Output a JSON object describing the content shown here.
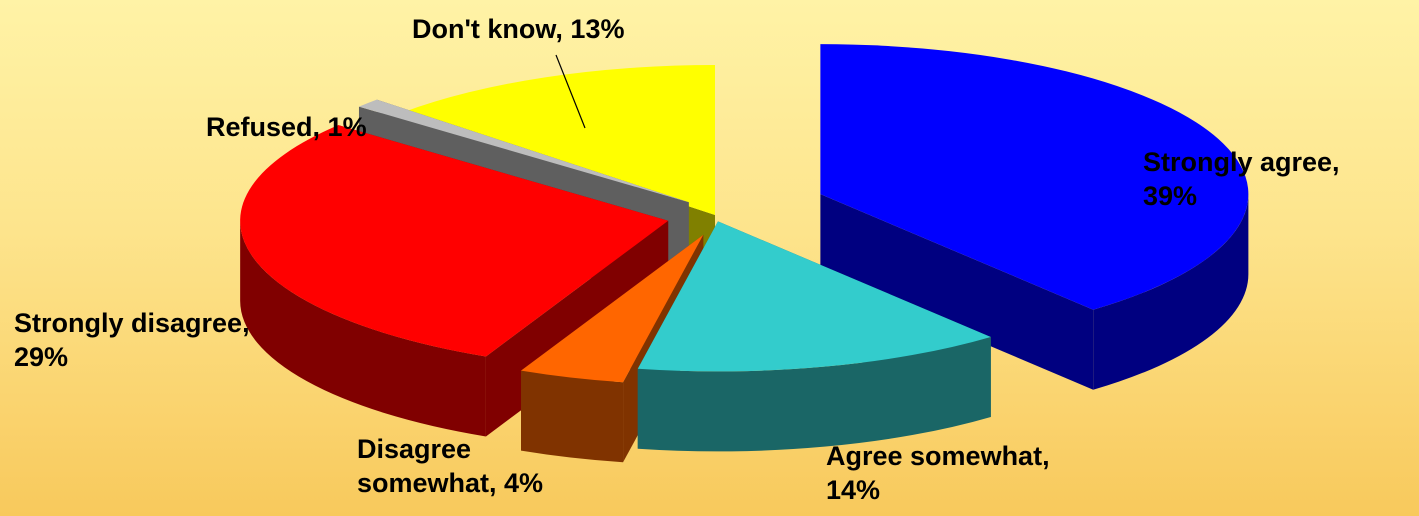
{
  "chart_data": {
    "type": "pie",
    "exploded": true,
    "three_d": true,
    "title": "",
    "slices": [
      {
        "label": "Strongly agree",
        "value": 39,
        "color": "#0000ff"
      },
      {
        "label": "Agree somewhat",
        "value": 14,
        "color": "#33cccc"
      },
      {
        "label": "Disagree somewhat",
        "value": 4,
        "color": "#ff6600"
      },
      {
        "label": "Strongly disagree",
        "value": 29,
        "color": "#ff0000"
      },
      {
        "label": "Refused",
        "value": 1,
        "color": "#bdbdbd"
      },
      {
        "label": "Don't know",
        "value": 13,
        "color": "#ffff00"
      }
    ]
  },
  "labels": {
    "strongly_agree": {
      "name": "Strongly agree,",
      "pct": "39%"
    },
    "agree_somewhat": {
      "name": "Agree somewhat,",
      "pct": "14%"
    },
    "disagree_somewhat": {
      "name": "Disagree",
      "pct": "somewhat, 4%"
    },
    "strongly_disagree": {
      "name": "Strongly disagree,",
      "pct": "29%"
    },
    "refused": {
      "name": "Refused,",
      "pct": "1%"
    },
    "dont_know": {
      "name": "Don't know,",
      "pct": "13%"
    }
  }
}
